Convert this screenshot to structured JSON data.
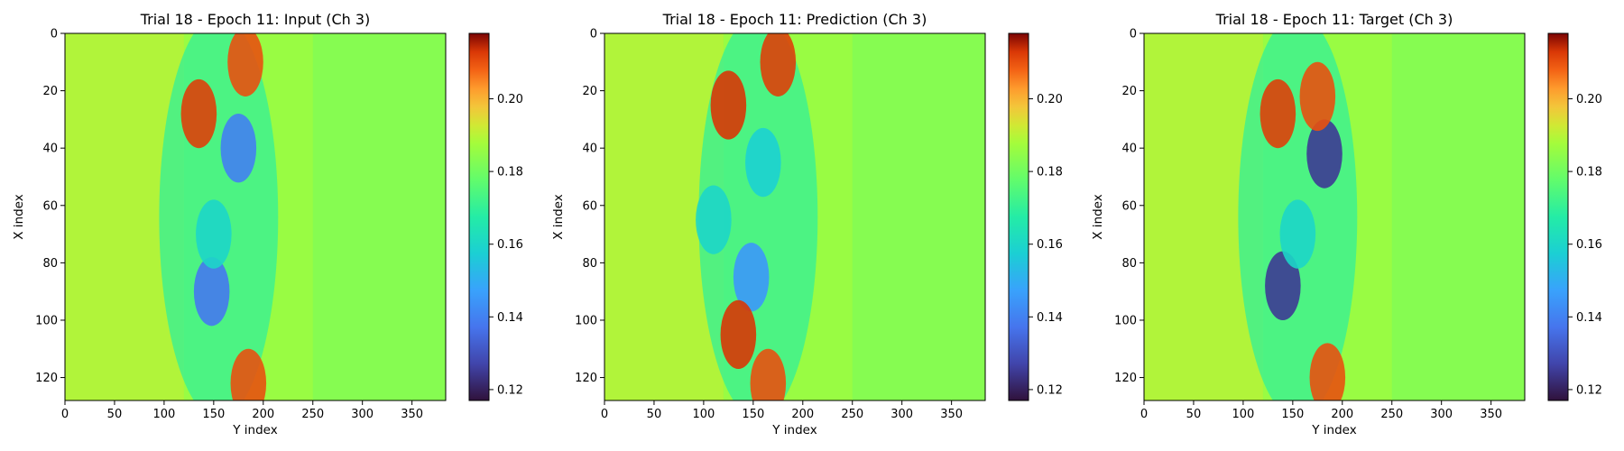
{
  "colormap": "turbo",
  "chart_data": [
    {
      "type": "heatmap",
      "title": "Trial 18 - Epoch 11: Input (Ch 3)",
      "xlabel": "Y index",
      "ylabel": "X index",
      "x_range": [
        0,
        384
      ],
      "y_range": [
        0,
        128
      ],
      "x_ticks": [
        0,
        50,
        100,
        150,
        200,
        250,
        300,
        350
      ],
      "y_ticks": [
        0,
        20,
        40,
        60,
        80,
        100,
        120
      ],
      "colorbar_ticks": [
        "0.12",
        "0.14",
        "0.16",
        "0.18",
        "0.20"
      ],
      "vmin": 0.117,
      "vmax": 0.218,
      "features": [
        {
          "x": 175,
          "y": 40,
          "value": 0.14
        },
        {
          "x": 148,
          "y": 90,
          "value": 0.138
        },
        {
          "x": 135,
          "y": 28,
          "value": 0.212
        },
        {
          "x": 182,
          "y": 10,
          "value": 0.21
        },
        {
          "x": 185,
          "y": 122,
          "value": 0.21
        },
        {
          "x": 150,
          "y": 70,
          "value": 0.16
        }
      ]
    },
    {
      "type": "heatmap",
      "title": "Trial 18 - Epoch 11: Prediction (Ch 3)",
      "xlabel": "Y index",
      "ylabel": "X index",
      "x_range": [
        0,
        384
      ],
      "y_range": [
        0,
        128
      ],
      "x_ticks": [
        0,
        50,
        100,
        150,
        200,
        250,
        300,
        350
      ],
      "y_ticks": [
        0,
        20,
        40,
        60,
        80,
        100,
        120
      ],
      "colorbar_ticks": [
        "0.12",
        "0.14",
        "0.16",
        "0.18",
        "0.20"
      ],
      "vmin": 0.117,
      "vmax": 0.218,
      "features": [
        {
          "x": 160,
          "y": 45,
          "value": 0.158
        },
        {
          "x": 148,
          "y": 85,
          "value": 0.145
        },
        {
          "x": 125,
          "y": 25,
          "value": 0.213
        },
        {
          "x": 175,
          "y": 10,
          "value": 0.212
        },
        {
          "x": 135,
          "y": 105,
          "value": 0.213
        },
        {
          "x": 165,
          "y": 122,
          "value": 0.21
        },
        {
          "x": 110,
          "y": 65,
          "value": 0.16
        }
      ]
    },
    {
      "type": "heatmap",
      "title": "Trial 18 - Epoch 11: Target (Ch 3)",
      "xlabel": "Y index",
      "ylabel": "X index",
      "x_range": [
        0,
        384
      ],
      "y_range": [
        0,
        128
      ],
      "x_ticks": [
        0,
        50,
        100,
        150,
        200,
        250,
        300,
        350
      ],
      "y_ticks": [
        0,
        20,
        40,
        60,
        80,
        100,
        120
      ],
      "colorbar_ticks": [
        "0.12",
        "0.14",
        "0.16",
        "0.18",
        "0.20"
      ],
      "vmin": 0.117,
      "vmax": 0.218,
      "features": [
        {
          "x": 182,
          "y": 42,
          "value": 0.125
        },
        {
          "x": 140,
          "y": 88,
          "value": 0.125
        },
        {
          "x": 135,
          "y": 28,
          "value": 0.212
        },
        {
          "x": 175,
          "y": 22,
          "value": 0.21
        },
        {
          "x": 185,
          "y": 120,
          "value": 0.21
        },
        {
          "x": 155,
          "y": 70,
          "value": 0.16
        }
      ]
    }
  ]
}
